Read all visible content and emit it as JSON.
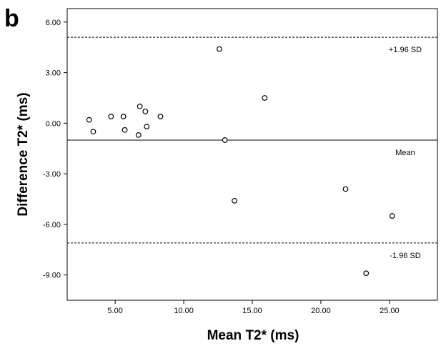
{
  "chart_data": {
    "type": "scatter",
    "panel_label": "b",
    "title": "",
    "xlabel": "Mean T2* (ms)",
    "ylabel": "Difference T2* (ms)",
    "xlim": [
      1.5,
      28.5
    ],
    "ylim": [
      -10.5,
      6.8
    ],
    "x_ticks": [
      5,
      10,
      15,
      20,
      25
    ],
    "x_tick_labels": [
      "5.00",
      "10.00",
      "15.00",
      "20.00",
      "25.00"
    ],
    "y_ticks": [
      6,
      3,
      0,
      -3,
      -6,
      -9
    ],
    "y_tick_labels": [
      "6.00",
      "3.00",
      "0.00",
      "-3.00",
      "-6.00",
      "-9.00"
    ],
    "grid": false,
    "legend": "none",
    "reference_lines": [
      {
        "value": 5.1,
        "label": "+1.96 SD",
        "style": "dashed"
      },
      {
        "value": -1.0,
        "label": "Mean",
        "style": "solid"
      },
      {
        "value": -7.1,
        "label": "-1.96 SD",
        "style": "dashed"
      }
    ],
    "points": [
      {
        "x": 3.1,
        "y": 0.2
      },
      {
        "x": 3.4,
        "y": -0.5
      },
      {
        "x": 4.7,
        "y": 0.4
      },
      {
        "x": 5.6,
        "y": 0.4
      },
      {
        "x": 5.7,
        "y": -0.4
      },
      {
        "x": 6.7,
        "y": -0.7
      },
      {
        "x": 6.8,
        "y": 1.0
      },
      {
        "x": 7.2,
        "y": 0.7
      },
      {
        "x": 7.3,
        "y": -0.2
      },
      {
        "x": 8.3,
        "y": 0.4
      },
      {
        "x": 12.6,
        "y": 4.4
      },
      {
        "x": 13.0,
        "y": -1.0
      },
      {
        "x": 13.7,
        "y": -4.6
      },
      {
        "x": 15.9,
        "y": 1.5
      },
      {
        "x": 21.8,
        "y": -3.9
      },
      {
        "x": 23.3,
        "y": -8.9
      },
      {
        "x": 25.2,
        "y": -5.5
      }
    ]
  }
}
